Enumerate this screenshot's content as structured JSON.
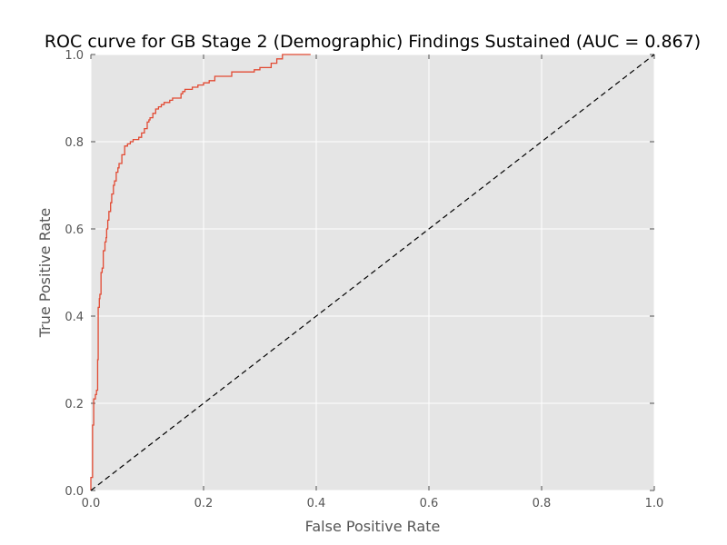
{
  "colors": {
    "background": "#ffffff",
    "plot_background": "#e5e5e5",
    "grid": "#ffffff",
    "roc_line": "#e24a33",
    "diagonal": "#000000",
    "text": "#555555"
  },
  "chart_data": {
    "type": "line",
    "title": "ROC curve for GB Stage 2 (Demographic) Findings Sustained (AUC = 0.867)",
    "xlabel": "False Positive Rate",
    "ylabel": "True Positive Rate",
    "xlim": [
      0.0,
      1.0
    ],
    "ylim": [
      0.0,
      1.0
    ],
    "xticks": [
      "0.0",
      "0.2",
      "0.4",
      "0.6",
      "0.8",
      "1.0"
    ],
    "yticks": [
      "0.0",
      "0.2",
      "0.4",
      "0.6",
      "0.8",
      "1.0"
    ],
    "grid": true,
    "legend": "none",
    "series": [
      {
        "style": "solid",
        "color": "#e24a33",
        "x": [
          0.0,
          0.0,
          0.003,
          0.005,
          0.008,
          0.01,
          0.012,
          0.013,
          0.015,
          0.016,
          0.018,
          0.02,
          0.022,
          0.025,
          0.027,
          0.028,
          0.03,
          0.032,
          0.035,
          0.037,
          0.04,
          0.042,
          0.045,
          0.048,
          0.05,
          0.055,
          0.06,
          0.065,
          0.07,
          0.075,
          0.08,
          0.085,
          0.09,
          0.095,
          0.1,
          0.103,
          0.105,
          0.11,
          0.115,
          0.12,
          0.125,
          0.13,
          0.135,
          0.14,
          0.145,
          0.15,
          0.16,
          0.163,
          0.167,
          0.17,
          0.18,
          0.19,
          0.2,
          0.21,
          0.22,
          0.23,
          0.25,
          0.26,
          0.29,
          0.3,
          0.32,
          0.33,
          0.34,
          0.35,
          0.39
        ],
        "y": [
          0.0,
          0.03,
          0.15,
          0.21,
          0.22,
          0.23,
          0.3,
          0.42,
          0.44,
          0.45,
          0.5,
          0.51,
          0.55,
          0.57,
          0.58,
          0.6,
          0.62,
          0.64,
          0.66,
          0.68,
          0.7,
          0.71,
          0.73,
          0.74,
          0.75,
          0.77,
          0.79,
          0.795,
          0.8,
          0.805,
          0.805,
          0.81,
          0.82,
          0.83,
          0.845,
          0.85,
          0.855,
          0.865,
          0.875,
          0.88,
          0.885,
          0.89,
          0.89,
          0.895,
          0.9,
          0.9,
          0.91,
          0.915,
          0.92,
          0.92,
          0.925,
          0.93,
          0.935,
          0.94,
          0.95,
          0.95,
          0.96,
          0.96,
          0.965,
          0.97,
          0.98,
          0.99,
          1.0,
          1.0,
          1.0
        ]
      },
      {
        "style": "dashed",
        "color": "#000000",
        "x": [
          0.0,
          1.0
        ],
        "y": [
          0.0,
          1.0
        ]
      }
    ]
  }
}
